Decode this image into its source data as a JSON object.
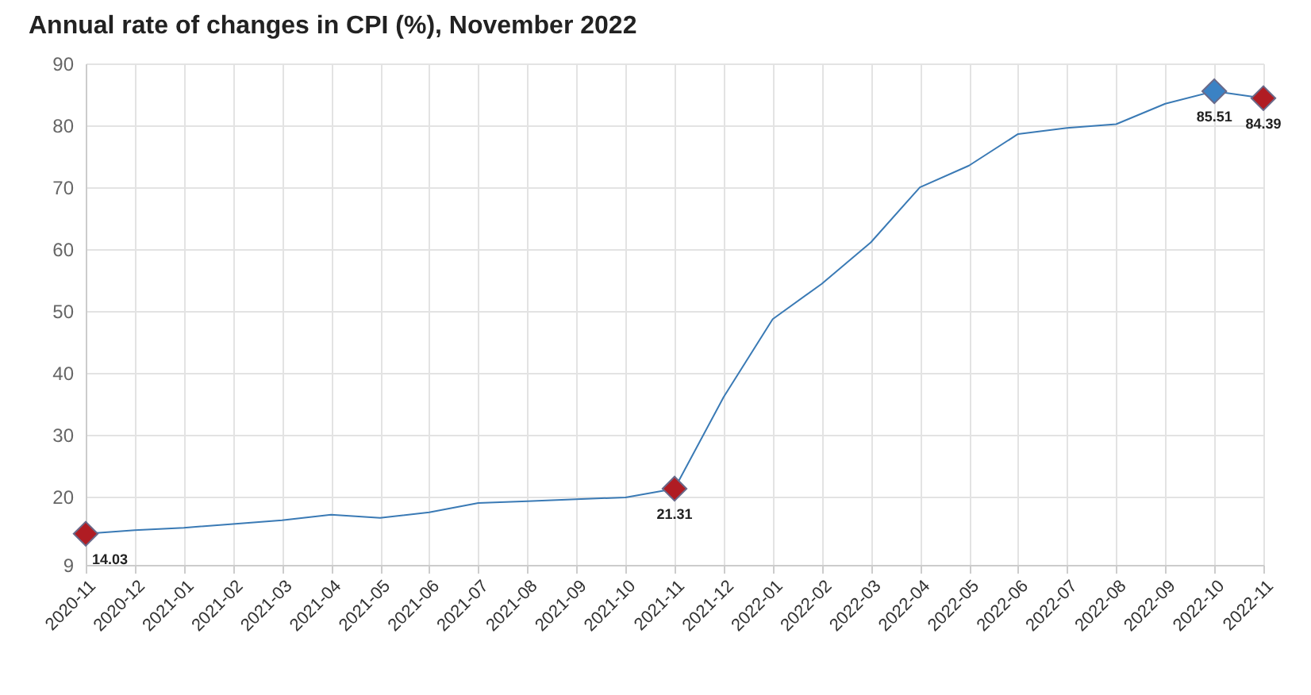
{
  "chart_data": {
    "type": "line",
    "title": "Annual rate of changes in CPI (%), November 2022",
    "categories": [
      "2020-11",
      "2020-12",
      "2021-01",
      "2021-02",
      "2021-03",
      "2021-04",
      "2021-05",
      "2021-06",
      "2021-07",
      "2021-08",
      "2021-09",
      "2021-10",
      "2021-11",
      "2021-12",
      "2022-01",
      "2022-02",
      "2022-03",
      "2022-04",
      "2022-05",
      "2022-06",
      "2022-07",
      "2022-08",
      "2022-09",
      "2022-10",
      "2022-11"
    ],
    "series": [
      {
        "color": "#3a7ab5",
        "marker": "none",
        "values": [
          14.03,
          14.6,
          15.0,
          15.6,
          16.2,
          17.1,
          16.6,
          17.5,
          19.0,
          19.3,
          19.6,
          19.9,
          21.31,
          36.1,
          48.7,
          54.4,
          61.1,
          70.0,
          73.5,
          78.6,
          79.6,
          80.2,
          83.5,
          85.51,
          84.39
        ]
      },
      {
        "type": "scatter",
        "marker": "diamond",
        "values": [
          14.03,
          null,
          null,
          null,
          null,
          null,
          null,
          null,
          null,
          null,
          null,
          null,
          21.31,
          null,
          null,
          null,
          null,
          null,
          null,
          null,
          null,
          null,
          null,
          85.51,
          84.39
        ],
        "colors": [
          "#b01c23",
          null,
          null,
          null,
          null,
          null,
          null,
          null,
          null,
          null,
          null,
          null,
          "#b01c23",
          null,
          null,
          null,
          null,
          null,
          null,
          null,
          null,
          null,
          null,
          "#3b82c4",
          "#b01c23"
        ],
        "value_labels": [
          "14.03",
          null,
          null,
          null,
          null,
          null,
          null,
          null,
          null,
          null,
          null,
          null,
          "21.31",
          null,
          null,
          null,
          null,
          null,
          null,
          null,
          null,
          null,
          null,
          "85.51",
          "84.39"
        ]
      }
    ],
    "ylim": [
      9,
      90
    ],
    "yticks": [
      9,
      20,
      30,
      40,
      50,
      60,
      70,
      80,
      90
    ],
    "grid": true
  }
}
